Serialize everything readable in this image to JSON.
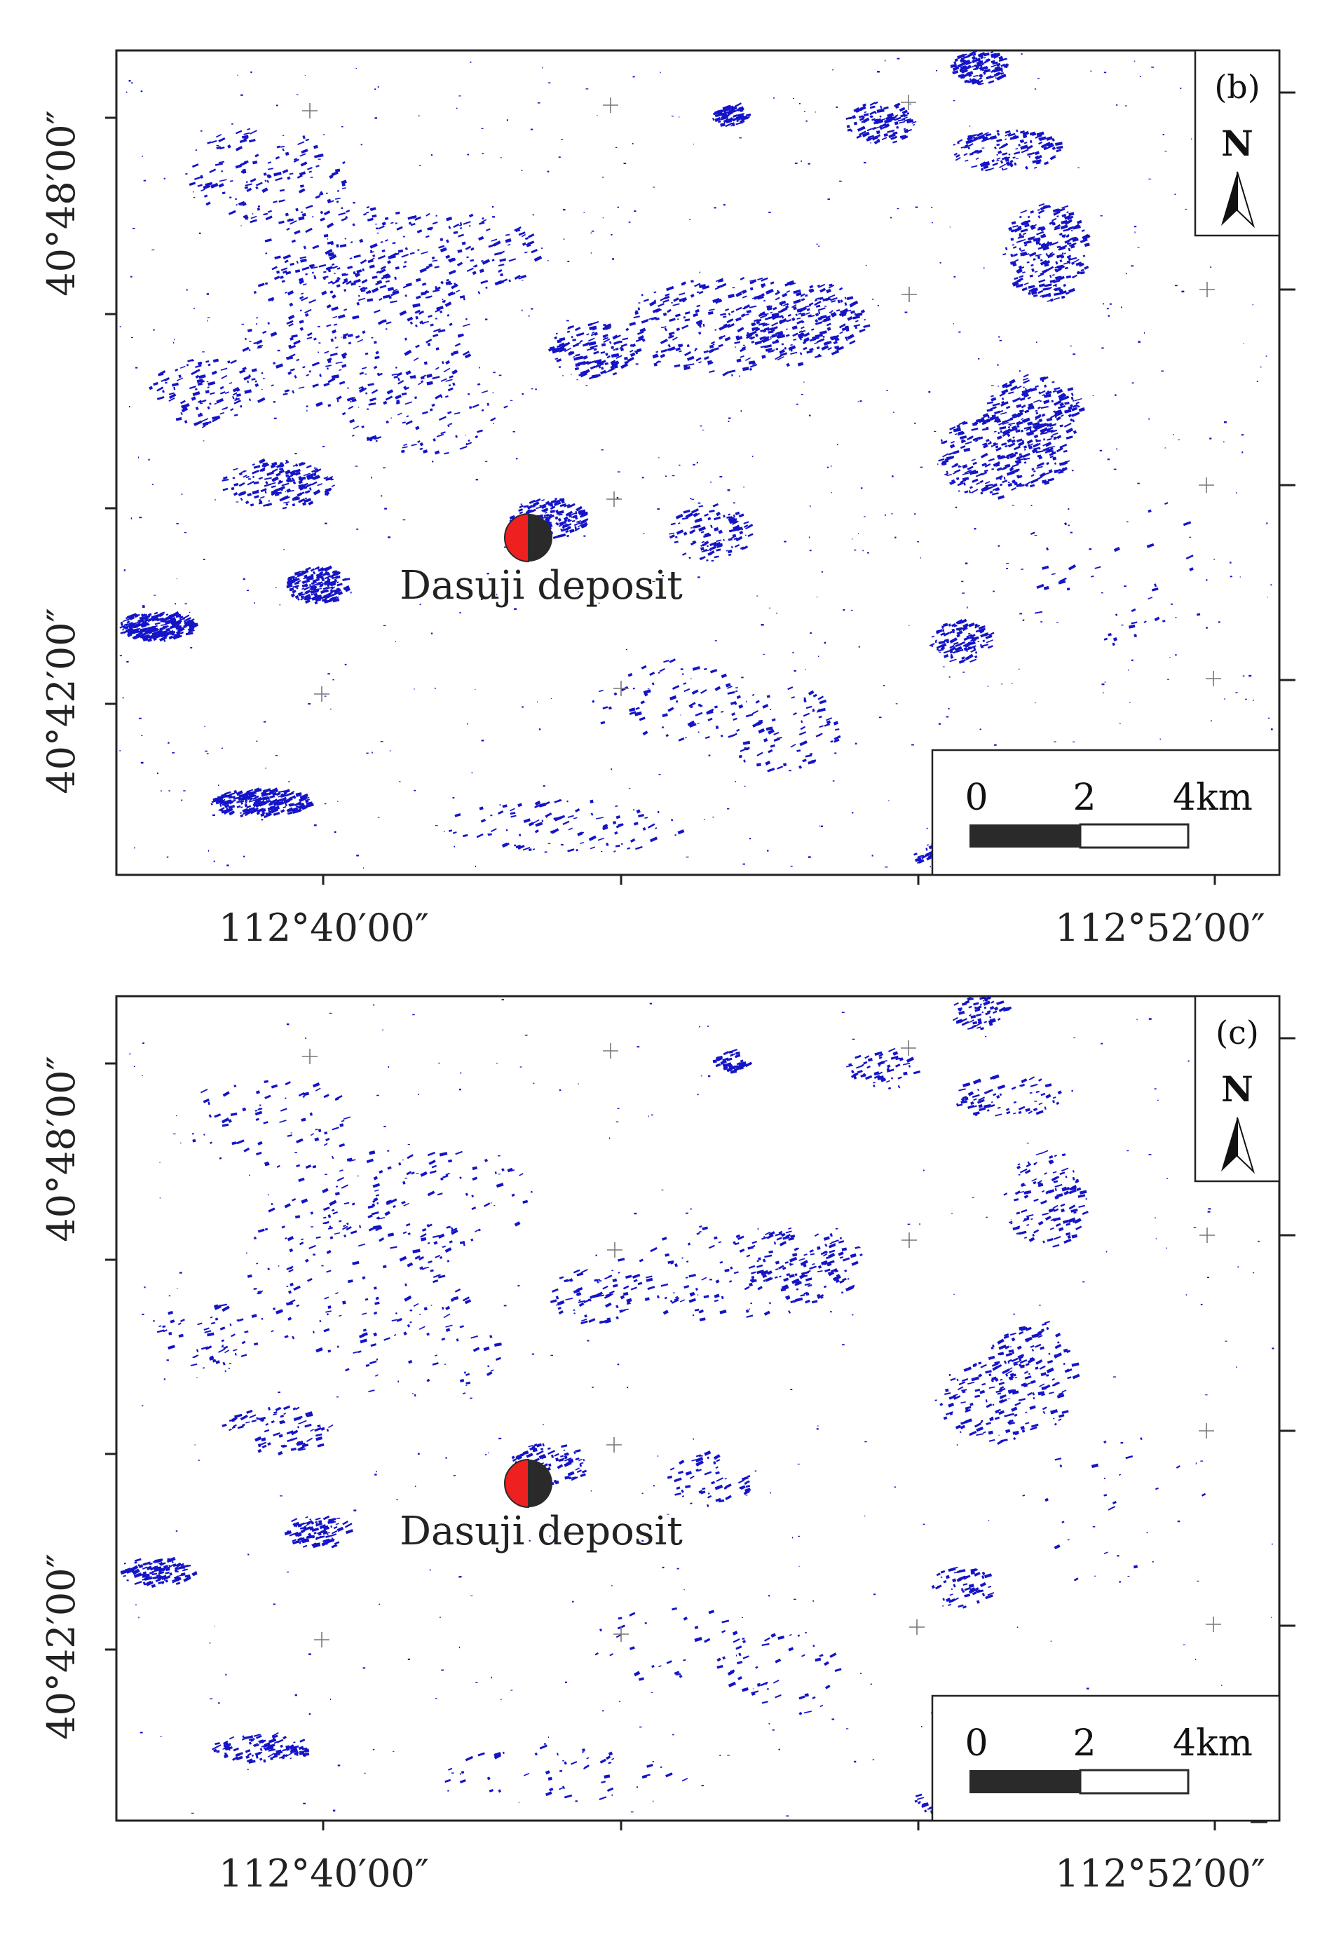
{
  "colors": {
    "water": "#1414c8",
    "frame": "#222222",
    "deposit_left": "#ee2020",
    "deposit_right": "#2a2a2a",
    "grid_cross": "#777777"
  },
  "panels": [
    {
      "id": "b",
      "label": "(b)",
      "lat_labels": [
        "40°48′00″",
        "40°42′00″"
      ],
      "lon_labels": [
        "112°40′00″",
        "112°52′00″"
      ],
      "north_symbol": "N",
      "north_icon": "north-arrow-icon",
      "scale": {
        "ticks": [
          "0",
          "2",
          "4km"
        ]
      },
      "deposit": {
        "name": "Dasuji deposit",
        "icon": "deposit-marker-icon"
      },
      "density": 1.0
    },
    {
      "id": "c",
      "label": "(c)",
      "lat_labels": [
        "40°48′00″",
        "40°42′00″"
      ],
      "lon_labels": [
        "112°40′00″",
        "112°52′00″"
      ],
      "north_symbol": "N",
      "north_icon": "north-arrow-icon",
      "scale": {
        "ticks": [
          "0",
          "2",
          "4km"
        ]
      },
      "deposit": {
        "name": "Dasuji deposit",
        "icon": "deposit-marker-icon"
      },
      "density": 0.5
    }
  ]
}
